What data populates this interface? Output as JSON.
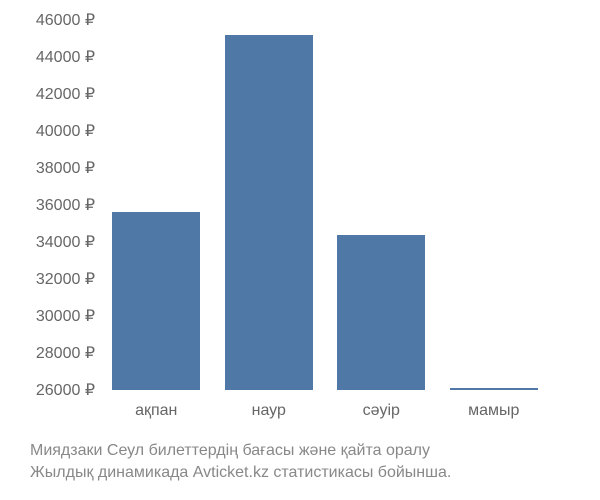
{
  "chart": {
    "type": "bar",
    "currency_suffix": " ₽",
    "y_axis": {
      "min": 26000,
      "max": 46000,
      "step": 2000,
      "tick_color": "#666666",
      "tick_fontsize": 16
    },
    "x_axis": {
      "label_color": "#666666",
      "label_fontsize": 16
    },
    "categories": [
      "ақпан",
      "наур",
      "сәуір",
      "мамыр"
    ],
    "values": [
      35600,
      45200,
      34400,
      26100
    ],
    "bar_color": "#4f78a7",
    "bar_width_ratio": 0.78,
    "background_color": "#ffffff"
  },
  "caption": {
    "line1": "Миядзаки Сеул билеттердің бағасы және қайта оралу",
    "line2": "Жылдық динамикада Avticket.kz статистикасы бойынша.",
    "color": "#888888",
    "fontsize": 16
  }
}
